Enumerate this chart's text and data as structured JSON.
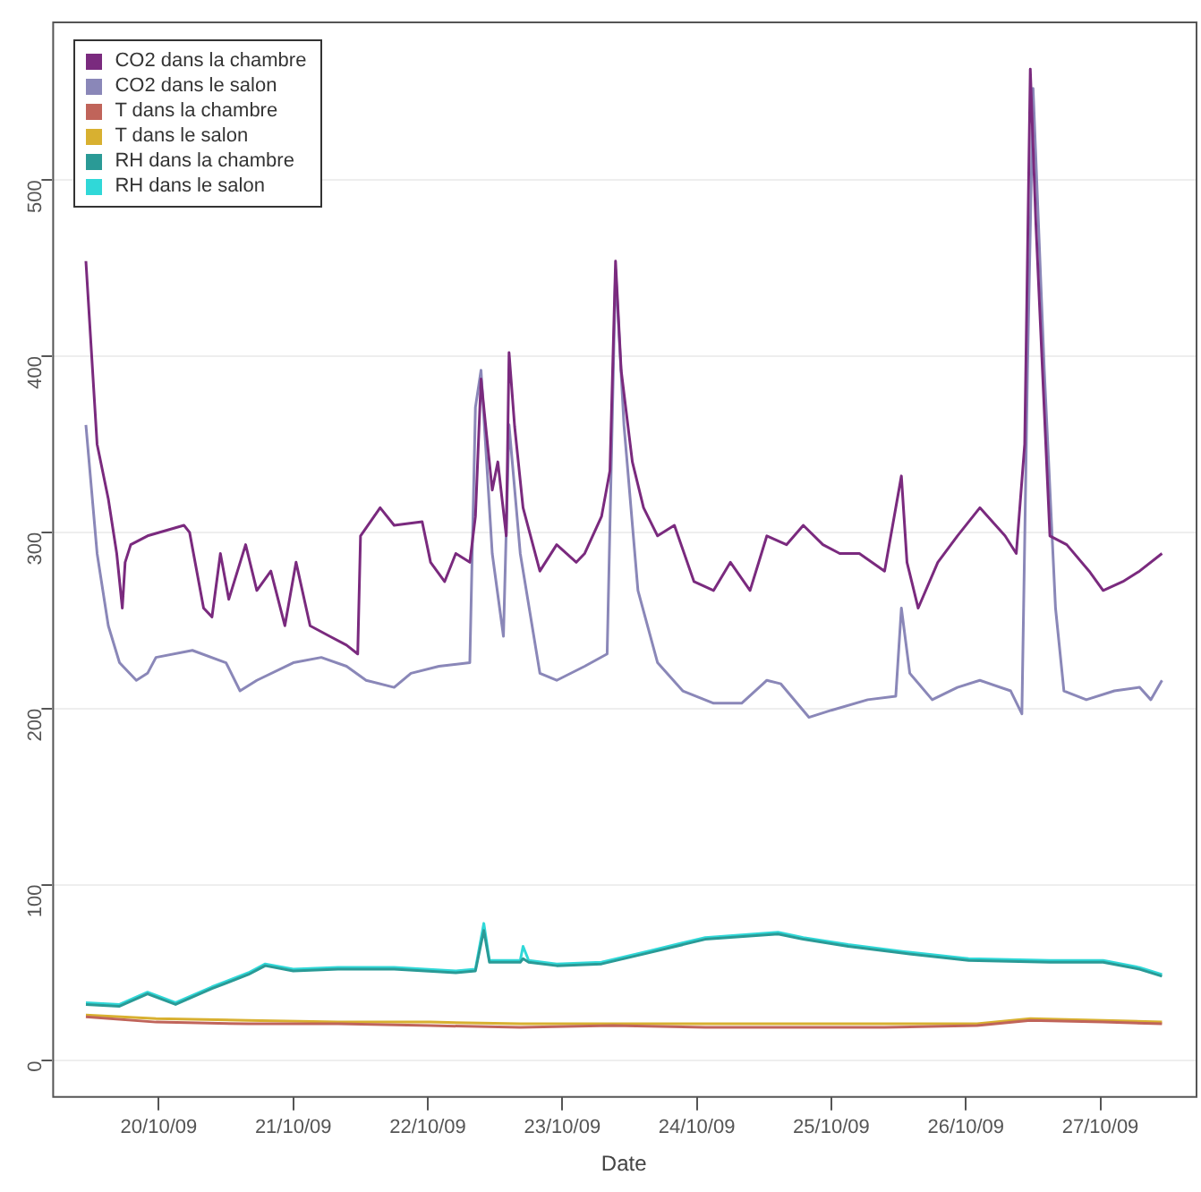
{
  "chart_data": {
    "type": "line",
    "xlabel": "Date",
    "legend": "top left",
    "grid": "y",
    "marker": "none",
    "line_style": "solid",
    "xlim": [
      "--10-19T05:00",
      "--10-27T17:00"
    ],
    "xticks": [
      {
        "value": "--10-20",
        "label": "20/10/09"
      },
      {
        "value": "--10-21",
        "label": "21/10/09"
      },
      {
        "value": "--10-22",
        "label": "22/10/09"
      },
      {
        "value": "--10-23",
        "label": "23/10/09"
      },
      {
        "value": "--10-24",
        "label": "24/10/09"
      },
      {
        "value": "--10-25",
        "label": "25/10/09"
      },
      {
        "value": "--10-26",
        "label": "26/10/09"
      },
      {
        "value": "--10-27",
        "label": "27/10/09"
      }
    ],
    "ylim": [
      -20,
      590
    ],
    "yticks": [
      0,
      100,
      200,
      300,
      400,
      500
    ],
    "series": [
      {
        "name": "CO2 dans la chambre",
        "color": "#7a2a7e",
        "x": [
          "--10-19T11:00",
          "--10-19T13:00",
          "--10-19T15:00",
          "--10-19T16:30",
          "--10-19T17:30",
          "--10-19T18:00",
          "--10-19T19:00",
          "--10-19T22:00",
          "--10-20T04:30",
          "--10-20T05:30",
          "--10-20T08:00",
          "--10-20T09:30",
          "--10-20T11:00",
          "--10-20T12:30",
          "--10-20T15:30",
          "--10-20T17:30",
          "--10-20T20:00",
          "--10-20T22:30",
          "--10-21T00:30",
          "--10-21T03:00",
          "--10-21T06:30",
          "--10-21T09:30",
          "--10-21T11:30",
          "--10-21T12:00",
          "--10-21T15:30",
          "--10-21T18:00",
          "--10-21T23:00",
          "--10-22T00:30",
          "--10-22T03:00",
          "--10-22T05:00",
          "--10-22T07:30",
          "--10-22T08:30",
          "--10-22T09:30",
          "--10-22T10:30",
          "--10-22T11:30",
          "--10-22T12:30",
          "--10-22T14:00",
          "--10-22T14:30",
          "--10-22T15:30",
          "--10-22T17:00",
          "--10-22T20:00",
          "--10-22T23:00",
          "--10-23T02:30",
          "--10-23T04:00",
          "--10-23T07:00",
          "--10-23T08:30",
          "--10-23T09:30",
          "--10-23T10:30",
          "--10-23T12:30",
          "--10-23T14:30",
          "--10-23T17:00",
          "--10-23T20:00",
          "--10-23T23:30",
          "--10-24T03:00",
          "--10-24T06:00",
          "--10-24T09:30",
          "--10-24T12:30",
          "--10-24T16:00",
          "--10-24T19:00",
          "--10-24T22:30",
          "--10-25T01:30",
          "--10-25T05:00",
          "--10-25T09:30",
          "--10-25T12:30",
          "--10-25T13:30",
          "--10-25T15:30",
          "--10-25T19:00",
          "--10-25T22:30",
          "--10-26T02:30",
          "--10-26T07:00",
          "--10-26T09:00",
          "--10-26T10:30",
          "--10-26T11:30",
          "--10-26T12:30",
          "--10-26T15:00",
          "--10-26T18:00",
          "--10-26T22:00",
          "--10-27T00:30",
          "--10-27T04:00",
          "--10-27T07:00",
          "--10-27T11:00"
        ],
        "values": [
          454,
          350,
          319,
          288,
          257,
          283,
          293,
          298,
          304,
          300,
          257,
          252,
          288,
          262,
          293,
          267,
          278,
          247,
          283,
          247,
          241,
          236,
          231,
          298,
          314,
          304,
          306,
          283,
          272,
          288,
          283,
          309,
          387,
          355,
          324,
          340,
          298,
          402,
          360,
          314,
          278,
          293,
          283,
          288,
          309,
          335,
          454,
          392,
          340,
          314,
          298,
          304,
          272,
          267,
          283,
          267,
          298,
          293,
          304,
          293,
          288,
          288,
          278,
          332,
          283,
          257,
          283,
          298,
          314,
          298,
          288,
          350,
          563,
          475,
          298,
          293,
          278,
          267,
          272,
          278,
          288
        ]
      },
      {
        "name": "CO2 dans le salon",
        "color": "#8a87b8",
        "x": [
          "--10-19T11:00",
          "--10-19T13:00",
          "--10-19T15:00",
          "--10-19T17:00",
          "--10-19T20:00",
          "--10-19T22:00",
          "--10-19T23:30",
          "--10-20T06:00",
          "--10-20T12:00",
          "--10-20T14:30",
          "--10-20T17:30",
          "--10-21T00:00",
          "--10-21T05:00",
          "--10-21T09:30",
          "--10-21T13:00",
          "--10-21T18:00",
          "--10-21T21:00",
          "--10-22T02:00",
          "--10-22T07:30",
          "--10-22T08:30",
          "--10-22T09:30",
          "--10-22T11:30",
          "--10-22T13:30",
          "--10-22T14:30",
          "--10-22T16:30",
          "--10-22T20:00",
          "--10-22T23:00",
          "--10-23T04:00",
          "--10-23T08:00",
          "--10-23T09:30",
          "--10-23T11:00",
          "--10-23T13:30",
          "--10-23T17:00",
          "--10-23T21:30",
          "--10-24T03:00",
          "--10-24T08:00",
          "--10-24T12:30",
          "--10-24T15:00",
          "--10-24T20:00",
          "--10-25T00:00",
          "--10-25T06:30",
          "--10-25T11:30",
          "--10-25T12:30",
          "--10-25T14:00",
          "--10-25T18:00",
          "--10-25T22:30",
          "--10-26T02:30",
          "--10-26T08:00",
          "--10-26T10:00",
          "--10-26T11:00",
          "--10-26T12:00",
          "--10-26T14:00",
          "--10-26T16:00",
          "--10-26T17:30",
          "--10-26T21:30",
          "--10-27T02:30",
          "--10-27T07:00",
          "--10-27T09:00",
          "--10-27T11:00"
        ],
        "values": [
          361,
          288,
          247,
          226,
          216,
          220,
          229,
          233,
          226,
          210,
          216,
          226,
          229,
          224,
          216,
          212,
          220,
          224,
          226,
          371,
          392,
          288,
          241,
          361,
          288,
          220,
          216,
          224,
          231,
          449,
          361,
          267,
          226,
          210,
          203,
          203,
          216,
          214,
          195,
          199,
          205,
          207,
          257,
          220,
          205,
          212,
          216,
          210,
          197,
          392,
          552,
          392,
          257,
          210,
          205,
          210,
          212,
          205,
          216
        ]
      },
      {
        "name": "T dans la chambre",
        "color": "#c0645a",
        "x": [
          "--10-19T11:00",
          "--10-19T23:30",
          "--10-20T16:00",
          "--10-21T08:00",
          "--10-22T00:30",
          "--10-22T16:30",
          "--10-23T09:00",
          "--10-24T01:30",
          "--10-24T17:30",
          "--10-25T09:30",
          "--10-26T02:00",
          "--10-26T11:30",
          "--10-27T00:30",
          "--10-27T11:00"
        ],
        "values": [
          25,
          22,
          21,
          21,
          20,
          19,
          20,
          19,
          19,
          19,
          20,
          23,
          22,
          21
        ]
      },
      {
        "name": "T dans le salon",
        "color": "#d8b030",
        "x": [
          "--10-19T11:00",
          "--10-19T23:30",
          "--10-20T16:00",
          "--10-21T08:00",
          "--10-22T00:30",
          "--10-22T16:30",
          "--10-23T09:00",
          "--10-24T01:30",
          "--10-24T17:30",
          "--10-25T09:30",
          "--10-26T02:00",
          "--10-26T11:30",
          "--10-27T00:30",
          "--10-27T11:00"
        ],
        "values": [
          26,
          24,
          23,
          22,
          22,
          21,
          21,
          21,
          21,
          21,
          21,
          24,
          23,
          22
        ]
      },
      {
        "name": "RH dans la chambre",
        "color": "#2a9a96",
        "x": [
          "--10-19T11:00",
          "--10-19T17:00",
          "--10-19T22:00",
          "--10-20T03:00",
          "--10-20T09:30",
          "--10-20T16:00",
          "--10-20T19:00",
          "--10-21T00:00",
          "--10-21T08:00",
          "--10-21T18:00",
          "--10-22T05:00",
          "--10-22T08:30",
          "--10-22T10:00",
          "--10-22T11:00",
          "--10-22T16:30",
          "--10-22T17:00",
          "--10-22T18:00",
          "--10-22T23:00",
          "--10-23T07:00",
          "--10-23T15:00",
          "--10-24T01:30",
          "--10-24T14:30",
          "--10-24T19:00",
          "--10-25T03:00",
          "--10-25T13:00",
          "--10-26T00:30",
          "--10-26T15:00",
          "--10-27T00:30",
          "--10-27T07:00",
          "--10-27T11:00"
        ],
        "values": [
          32,
          31,
          38,
          32,
          41,
          49,
          54,
          51,
          52,
          52,
          50,
          51,
          74,
          56,
          56,
          58,
          56,
          54,
          55,
          61,
          69,
          72,
          69,
          65,
          61,
          57,
          56,
          56,
          52,
          48
        ]
      },
      {
        "name": "RH dans le salon",
        "color": "#30d8d8",
        "x": [
          "--10-19T11:00",
          "--10-19T17:00",
          "--10-19T22:00",
          "--10-20T03:00",
          "--10-20T09:30",
          "--10-20T16:00",
          "--10-20T19:00",
          "--10-21T00:00",
          "--10-21T08:00",
          "--10-21T18:00",
          "--10-22T05:00",
          "--10-22T08:30",
          "--10-22T10:00",
          "--10-22T11:00",
          "--10-22T16:30",
          "--10-22T17:00",
          "--10-22T18:00",
          "--10-22T23:00",
          "--10-23T07:00",
          "--10-23T15:00",
          "--10-24T01:30",
          "--10-24T14:30",
          "--10-24T19:00",
          "--10-25T03:00",
          "--10-25T13:00",
          "--10-26T00:30",
          "--10-26T15:00",
          "--10-27T00:30",
          "--10-27T07:00",
          "--10-27T11:00"
        ],
        "values": [
          33,
          32,
          39,
          33,
          42,
          50,
          55,
          52,
          53,
          53,
          51,
          52,
          78,
          57,
          57,
          65,
          57,
          55,
          56,
          62,
          70,
          73,
          70,
          66,
          62,
          58,
          57,
          57,
          53,
          49
        ]
      }
    ]
  }
}
